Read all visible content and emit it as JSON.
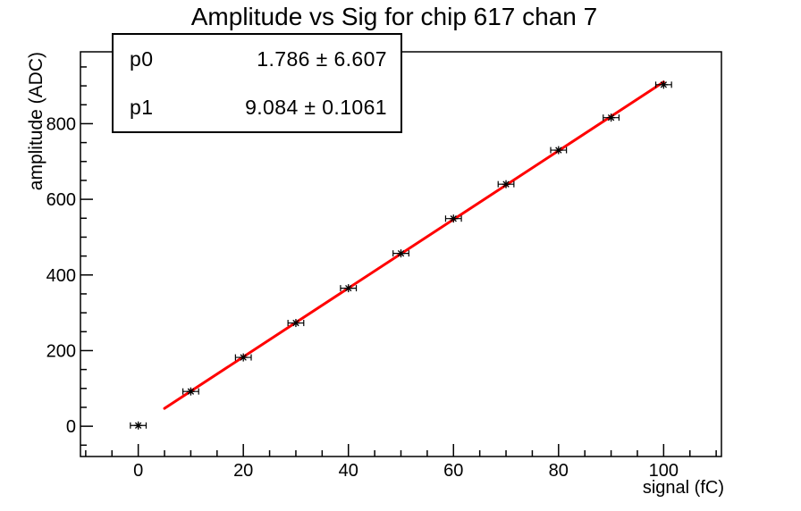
{
  "title": "Amplitude vs Sig for chip 617 chan 7",
  "stats_box": {
    "rows": [
      {
        "label": "p0",
        "value": "1.786 ± 6.607"
      },
      {
        "label": "p1",
        "value": "9.084 ± 0.1061"
      }
    ]
  },
  "chart_data": {
    "type": "scatter",
    "title": "Amplitude vs Sig for chip 617 chan 7",
    "xlabel": "signal (fC)",
    "ylabel": "amplitude (ADC)",
    "xlim": [
      -11,
      111
    ],
    "ylim": [
      -80,
      990
    ],
    "grid": false,
    "x_axis": {
      "major_ticks": [
        0,
        20,
        40,
        60,
        80,
        100
      ],
      "minor_step": 5
    },
    "y_axis": {
      "major_ticks": [
        0,
        200,
        400,
        600,
        800
      ],
      "minor_step": 50
    },
    "points": {
      "x": [
        0,
        10,
        20,
        30,
        40,
        50,
        60,
        70,
        80,
        90,
        100
      ],
      "y": [
        2,
        92,
        182,
        273,
        365,
        457,
        549,
        640,
        730,
        816,
        903
      ],
      "x_error": 1.5,
      "marker": "asterisk"
    },
    "fit": {
      "type": "linear",
      "p0": 1.786,
      "p0_err": 6.607,
      "p1": 9.084,
      "p1_err": 0.1061,
      "range": [
        5,
        100
      ]
    },
    "colors": {
      "fit_line": "#ff0000",
      "marker": "#000000",
      "axis": "#000000",
      "background": "#ffffff"
    }
  }
}
